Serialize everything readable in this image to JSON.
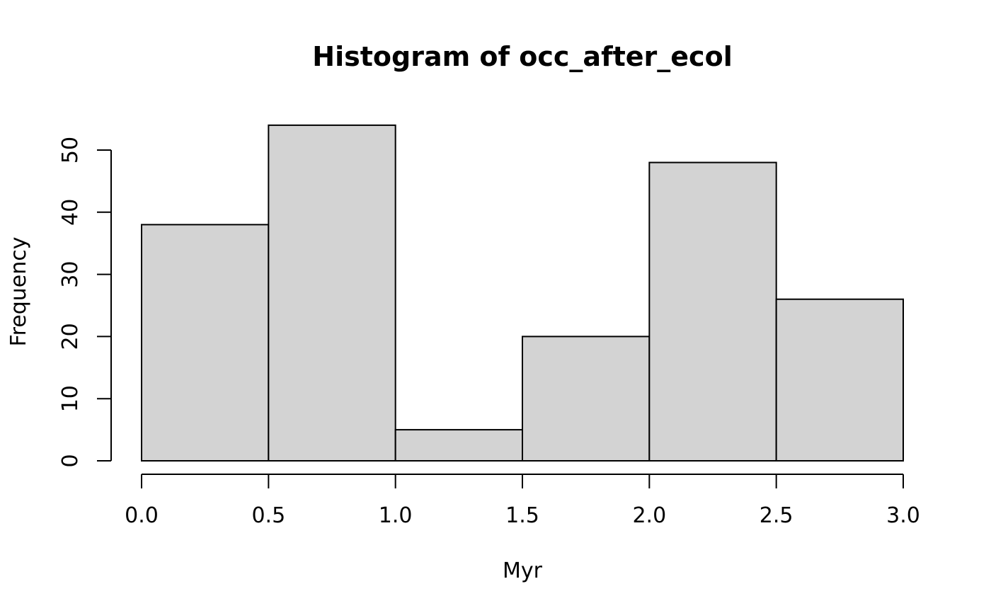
{
  "chart_data": {
    "type": "bar",
    "title": "Histogram of occ_after_ecol",
    "xlabel": "Myr",
    "ylabel": "Frequency",
    "bins": [
      {
        "from": 0.0,
        "to": 0.5,
        "count": 38
      },
      {
        "from": 0.5,
        "to": 1.0,
        "count": 54
      },
      {
        "from": 1.0,
        "to": 1.5,
        "count": 5
      },
      {
        "from": 1.5,
        "to": 2.0,
        "count": 20
      },
      {
        "from": 2.0,
        "to": 2.5,
        "count": 48
      },
      {
        "from": 2.5,
        "to": 3.0,
        "count": 26
      }
    ],
    "xlim": [
      0,
      3
    ],
    "ylim": [
      0,
      54
    ],
    "x_ticks": [
      "0.0",
      "0.5",
      "1.0",
      "1.5",
      "2.0",
      "2.5",
      "3.0"
    ],
    "y_ticks": [
      "0",
      "10",
      "20",
      "30",
      "40",
      "50"
    ],
    "bar_fill": "#d3d3d3",
    "bar_stroke": "#000000",
    "grid": false,
    "legend": "none"
  }
}
